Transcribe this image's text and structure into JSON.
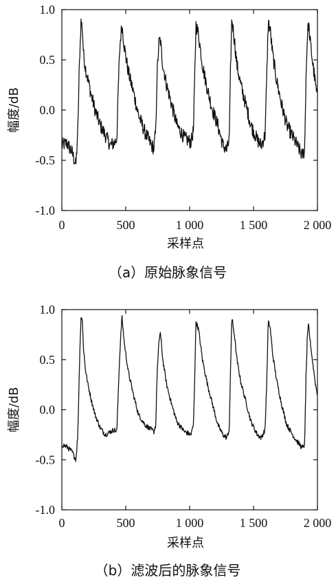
{
  "chart_data": [
    {
      "type": "line",
      "caption": "（a）原始脉象信号",
      "xlabel": "采样点",
      "ylabel": "幅度/dB",
      "xlim": [
        0,
        2000
      ],
      "ylim": [
        -1.0,
        1.0
      ],
      "x_ticks": [
        "0",
        "500",
        "1 000",
        "1 500",
        "2 000"
      ],
      "y_ticks": [
        "1.0",
        "0.5",
        "0.0",
        "-0.5",
        "-1.0"
      ],
      "grid": false,
      "line_color": "#111111",
      "noise": "high",
      "series": [
        {
          "x": [
            0,
            40,
            80,
            110,
            125,
            135,
            140,
            150,
            160,
            170,
            185,
            200,
            230,
            260,
            300,
            340,
            380,
            410,
            430,
            445,
            455,
            470,
            490,
            520,
            560,
            600,
            650,
            700,
            720,
            735,
            745,
            760,
            770,
            790,
            820,
            860,
            900,
            960,
            1010,
            1030,
            1040,
            1050,
            1070,
            1100,
            1140,
            1180,
            1220,
            1260,
            1290,
            1310,
            1320,
            1330,
            1350,
            1370,
            1400,
            1440,
            1480,
            1530,
            1560,
            1590,
            1605,
            1615,
            1630,
            1650,
            1680,
            1720,
            1760,
            1820,
            1880,
            1900,
            1910,
            1920,
            1930,
            1940,
            1960,
            1985,
            2000
          ],
          "y": [
            -0.35,
            -0.33,
            -0.42,
            -0.55,
            -0.22,
            0.35,
            0.55,
            0.88,
            0.82,
            0.55,
            0.42,
            0.33,
            0.15,
            0.0,
            -0.15,
            -0.25,
            -0.35,
            -0.33,
            -0.28,
            0.35,
            0.65,
            0.85,
            0.62,
            0.38,
            0.18,
            -0.05,
            -0.22,
            -0.35,
            -0.38,
            -0.2,
            0.35,
            0.68,
            0.7,
            0.45,
            0.25,
            0.05,
            -0.15,
            -0.28,
            -0.32,
            -0.2,
            0.35,
            0.85,
            0.75,
            0.45,
            0.2,
            0.0,
            -0.15,
            -0.35,
            -0.4,
            -0.3,
            0.4,
            0.92,
            0.7,
            0.45,
            0.25,
            0.05,
            -0.15,
            -0.3,
            -0.35,
            -0.25,
            0.4,
            0.88,
            0.8,
            0.55,
            0.3,
            0.05,
            -0.15,
            -0.3,
            -0.45,
            -0.4,
            0.3,
            0.7,
            0.87,
            0.72,
            0.5,
            0.25,
            0.1
          ]
        }
      ]
    },
    {
      "type": "line",
      "caption": "（b）滤波后的脉象信号",
      "xlabel": "采样点",
      "ylabel": "幅度/dB",
      "xlim": [
        0,
        2000
      ],
      "ylim": [
        -1.0,
        1.0
      ],
      "x_ticks": [
        "0",
        "500",
        "1 000",
        "1 500",
        "2 000"
      ],
      "y_ticks": [
        "1.0",
        "0.5",
        "0.0",
        "-0.5",
        "-1.0"
      ],
      "grid": false,
      "line_color": "#111111",
      "noise": "low",
      "series": [
        {
          "x": [
            0,
            40,
            80,
            110,
            125,
            135,
            140,
            150,
            160,
            170,
            185,
            200,
            230,
            260,
            300,
            340,
            380,
            410,
            430,
            445,
            455,
            470,
            490,
            520,
            560,
            600,
            650,
            700,
            720,
            735,
            745,
            760,
            770,
            790,
            820,
            860,
            900,
            960,
            1010,
            1030,
            1040,
            1050,
            1070,
            1100,
            1140,
            1180,
            1220,
            1260,
            1290,
            1310,
            1320,
            1330,
            1350,
            1370,
            1400,
            1440,
            1480,
            1530,
            1560,
            1590,
            1605,
            1615,
            1630,
            1650,
            1680,
            1720,
            1760,
            1820,
            1880,
            1900,
            1910,
            1920,
            1930,
            1940,
            1960,
            1985,
            2000
          ],
          "y": [
            -0.35,
            -0.37,
            -0.42,
            -0.5,
            -0.25,
            0.3,
            0.55,
            0.93,
            0.9,
            0.6,
            0.4,
            0.28,
            0.1,
            -0.05,
            -0.18,
            -0.25,
            -0.22,
            -0.2,
            -0.22,
            0.3,
            0.6,
            0.93,
            0.65,
            0.38,
            0.15,
            -0.05,
            -0.15,
            -0.2,
            -0.22,
            -0.15,
            0.35,
            0.68,
            0.78,
            0.5,
            0.25,
            0.05,
            -0.12,
            -0.22,
            -0.25,
            -0.15,
            0.35,
            0.88,
            0.8,
            0.5,
            0.25,
            0.05,
            -0.15,
            -0.25,
            -0.28,
            -0.2,
            0.4,
            0.92,
            0.75,
            0.5,
            0.28,
            0.08,
            -0.12,
            -0.25,
            -0.28,
            -0.2,
            0.35,
            0.88,
            0.82,
            0.55,
            0.3,
            0.05,
            -0.15,
            -0.28,
            -0.38,
            -0.35,
            0.3,
            0.7,
            0.85,
            0.72,
            0.5,
            0.25,
            0.15
          ]
        }
      ]
    }
  ]
}
